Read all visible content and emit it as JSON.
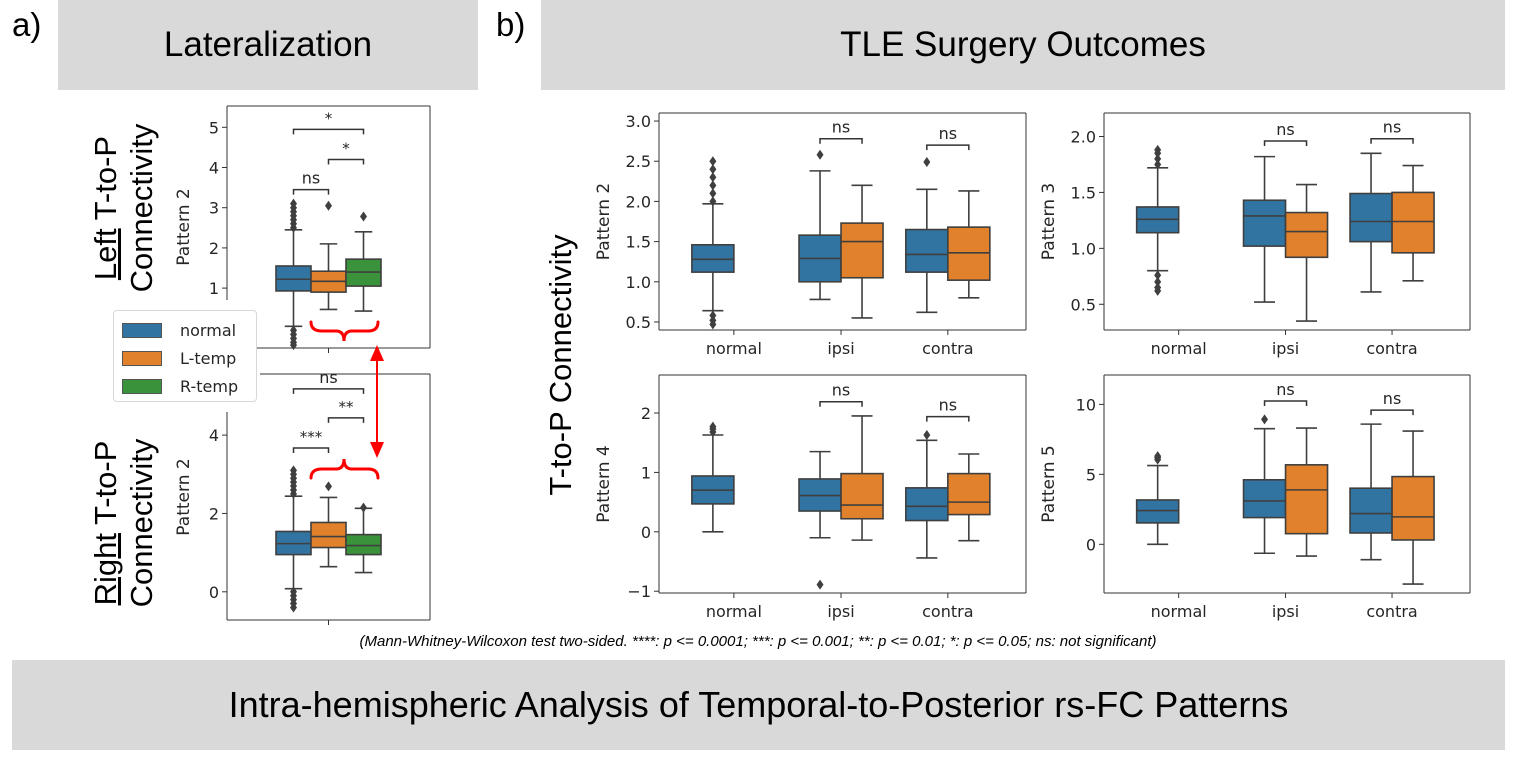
{
  "panel_a": {
    "letter": "a)",
    "title": "Lateralization",
    "row_labels": [
      {
        "underlined": "Left",
        "rest": " T-to-P",
        "line2": "Connectivity"
      },
      {
        "underlined": "Right",
        "rest": " T-to-P",
        "line2": "Connectivity"
      }
    ]
  },
  "panel_b": {
    "letter": "b)",
    "title": "TLE Surgery Outcomes",
    "row_label": "T-to-P Connectivity"
  },
  "footnote": "(Mann-Whitney-Wilcoxon test two-sided. ****: p <= 0.0001; ***: p <= 0.001; **: p <= 0.01; *: p <= 0.05; ns: not significant)",
  "bottom_title": "Intra-hemispheric Analysis of Temporal-to-Posterior rs-FC Patterns",
  "colors": {
    "normal": "#3274a1",
    "L-temp": "#e1812c",
    "R-temp": "#3a923a",
    "edge": "#3f3f3f",
    "annotation": "#ff0000",
    "header_bg": "#d9d9d9"
  },
  "legend": {
    "placement": "left",
    "items": [
      {
        "label": "normal",
        "color": "#3274a1"
      },
      {
        "label": "L-temp",
        "color": "#e1812c"
      },
      {
        "label": "R-temp",
        "color": "#3a923a"
      }
    ]
  },
  "chart_data": [
    {
      "id": "a_top",
      "type": "box",
      "ylabel": "Pattern 2",
      "ylim": [
        -0.49,
        5.53
      ],
      "yticks": [
        1,
        2,
        3,
        4,
        5
      ],
      "ytick_labels": [
        "1",
        "2",
        "3",
        "4",
        "5"
      ],
      "categories": [
        ""
      ],
      "boxes": [
        {
          "cat": 0,
          "hue": 0,
          "color": "#3274a1",
          "q1": 0.93,
          "median": 1.22,
          "q3": 1.55,
          "whislo": 0.05,
          "whishi": 2.45,
          "outliers": [
            2.5,
            2.6,
            2.7,
            2.8,
            2.9,
            3.0,
            3.1,
            -0.05,
            -0.15,
            -0.25,
            -0.35,
            -0.42
          ]
        },
        {
          "cat": 0,
          "hue": 1,
          "color": "#e1812c",
          "q1": 0.9,
          "median": 1.17,
          "q3": 1.42,
          "whislo": 0.47,
          "whishi": 2.1,
          "outliers": [
            3.05
          ]
        },
        {
          "cat": 0,
          "hue": 2,
          "color": "#3a923a",
          "q1": 1.05,
          "median": 1.4,
          "q3": 1.72,
          "whislo": 0.43,
          "whishi": 2.4,
          "outliers": [
            2.78
          ]
        }
      ],
      "brackets": [
        {
          "cat": 0,
          "h1": 0,
          "h2": 1,
          "y": 3.45,
          "label": "ns"
        },
        {
          "cat": 0,
          "h1": 1,
          "h2": 2,
          "y": 4.2,
          "label": "*"
        },
        {
          "cat": 0,
          "h1": 0,
          "h2": 2,
          "y": 4.95,
          "label": "*"
        }
      ]
    },
    {
      "id": "a_bottom",
      "type": "box",
      "ylabel": "Pattern 2",
      "ylim": [
        -0.72,
        5.56
      ],
      "yticks": [
        0,
        2,
        4
      ],
      "ytick_labels": [
        "0",
        "2",
        "4"
      ],
      "categories": [
        ""
      ],
      "boxes": [
        {
          "cat": 0,
          "hue": 0,
          "color": "#3274a1",
          "q1": 0.95,
          "median": 1.23,
          "q3": 1.54,
          "whislo": 0.08,
          "whishi": 2.44,
          "outliers": [
            2.5,
            2.6,
            2.7,
            2.8,
            2.9,
            3.0,
            3.1,
            0.0,
            -0.1,
            -0.2,
            -0.3,
            -0.4
          ]
        },
        {
          "cat": 0,
          "hue": 1,
          "color": "#e1812c",
          "q1": 1.13,
          "median": 1.41,
          "q3": 1.77,
          "whislo": 0.64,
          "whishi": 2.41,
          "outliers": [
            2.69
          ]
        },
        {
          "cat": 0,
          "hue": 2,
          "color": "#3a923a",
          "q1": 0.95,
          "median": 1.18,
          "q3": 1.46,
          "whislo": 0.49,
          "whishi": 2.13,
          "outliers": [
            2.15
          ]
        }
      ],
      "brackets": [
        {
          "cat": 0,
          "h1": 0,
          "h2": 1,
          "y": 3.67,
          "label": "***"
        },
        {
          "cat": 0,
          "h1": 1,
          "h2": 2,
          "y": 4.44,
          "label": "**"
        },
        {
          "cat": 0,
          "h1": 0,
          "h2": 2,
          "y": 5.18,
          "label": "ns"
        }
      ]
    },
    {
      "id": "b_p2",
      "type": "box",
      "ylabel": "Pattern 2",
      "ylim": [
        0.4,
        3.1
      ],
      "yticks": [
        0.5,
        1.0,
        1.5,
        2.0,
        2.5,
        3.0
      ],
      "ytick_labels": [
        "0.5",
        "1.0",
        "1.5",
        "2.0",
        "2.5",
        "3.0"
      ],
      "categories": [
        "normal",
        "ipsi",
        "contra"
      ],
      "boxes": [
        {
          "cat": 0,
          "hue": 0,
          "color": "#3274a1",
          "q1": 1.12,
          "median": 1.28,
          "q3": 1.46,
          "whislo": 0.64,
          "whishi": 1.97,
          "outliers": [
            2.0,
            2.1,
            2.2,
            2.3,
            2.4,
            2.5,
            0.58,
            0.52,
            0.47
          ]
        },
        {
          "cat": 1,
          "hue": 0,
          "color": "#3274a1",
          "q1": 1.0,
          "median": 1.29,
          "q3": 1.58,
          "whislo": 0.78,
          "whishi": 2.38,
          "outliers": [
            2.58
          ]
        },
        {
          "cat": 1,
          "hue": 1,
          "color": "#e1812c",
          "q1": 1.05,
          "median": 1.5,
          "q3": 1.73,
          "whislo": 0.55,
          "whishi": 2.2,
          "outliers": []
        },
        {
          "cat": 2,
          "hue": 0,
          "color": "#3274a1",
          "q1": 1.12,
          "median": 1.34,
          "q3": 1.65,
          "whislo": 0.62,
          "whishi": 2.15,
          "outliers": [
            2.49
          ]
        },
        {
          "cat": 2,
          "hue": 1,
          "color": "#e1812c",
          "q1": 1.02,
          "median": 1.36,
          "q3": 1.68,
          "whislo": 0.8,
          "whishi": 2.13,
          "outliers": []
        }
      ],
      "brackets": [
        {
          "cat": 1,
          "h1": 0,
          "h2": 1,
          "y": 2.78,
          "label": "ns"
        },
        {
          "cat": 2,
          "h1": 0,
          "h2": 1,
          "y": 2.7,
          "label": "ns"
        }
      ]
    },
    {
      "id": "b_p3",
      "type": "box",
      "ylabel": "Pattern 3",
      "ylim": [
        0.27,
        2.21
      ],
      "yticks": [
        0.5,
        1.0,
        1.5,
        2.0
      ],
      "ytick_labels": [
        "0.5",
        "1.0",
        "1.5",
        "2.0"
      ],
      "categories": [
        "normal",
        "ipsi",
        "contra"
      ],
      "boxes": [
        {
          "cat": 0,
          "hue": 0,
          "color": "#3274a1",
          "q1": 1.14,
          "median": 1.26,
          "q3": 1.37,
          "whislo": 0.8,
          "whishi": 1.72,
          "outliers": [
            1.75,
            1.8,
            1.85,
            1.88,
            0.76,
            0.7,
            0.65,
            0.62
          ]
        },
        {
          "cat": 1,
          "hue": 0,
          "color": "#3274a1",
          "q1": 1.02,
          "median": 1.29,
          "q3": 1.43,
          "whislo": 0.52,
          "whishi": 1.82,
          "outliers": []
        },
        {
          "cat": 1,
          "hue": 1,
          "color": "#e1812c",
          "q1": 0.92,
          "median": 1.15,
          "q3": 1.32,
          "whislo": 0.35,
          "whishi": 1.57,
          "outliers": []
        },
        {
          "cat": 2,
          "hue": 0,
          "color": "#3274a1",
          "q1": 1.06,
          "median": 1.24,
          "q3": 1.49,
          "whislo": 0.61,
          "whishi": 1.85,
          "outliers": []
        },
        {
          "cat": 2,
          "hue": 1,
          "color": "#e1812c",
          "q1": 0.96,
          "median": 1.24,
          "q3": 1.5,
          "whislo": 0.71,
          "whishi": 1.74,
          "outliers": []
        }
      ],
      "brackets": [
        {
          "cat": 1,
          "h1": 0,
          "h2": 1,
          "y": 1.96,
          "label": "ns"
        },
        {
          "cat": 2,
          "h1": 0,
          "h2": 1,
          "y": 1.98,
          "label": "ns"
        }
      ]
    },
    {
      "id": "b_p4",
      "type": "box",
      "ylabel": "Pattern 4",
      "ylim": [
        -1.03,
        2.64
      ],
      "yticks": [
        -1,
        0,
        1,
        2
      ],
      "ytick_labels": [
        "−1",
        "0",
        "1",
        "2"
      ],
      "categories": [
        "normal",
        "ipsi",
        "contra"
      ],
      "boxes": [
        {
          "cat": 0,
          "hue": 0,
          "color": "#3274a1",
          "q1": 0.47,
          "median": 0.7,
          "q3": 0.94,
          "whislo": 0.0,
          "whishi": 1.63,
          "outliers": [
            1.68,
            1.73,
            1.77
          ]
        },
        {
          "cat": 1,
          "hue": 0,
          "color": "#3274a1",
          "q1": 0.35,
          "median": 0.61,
          "q3": 0.89,
          "whislo": -0.1,
          "whishi": 1.35,
          "outliers": [
            -0.89
          ]
        },
        {
          "cat": 1,
          "hue": 1,
          "color": "#e1812c",
          "q1": 0.22,
          "median": 0.45,
          "q3": 0.98,
          "whislo": -0.14,
          "whishi": 1.95,
          "outliers": []
        },
        {
          "cat": 2,
          "hue": 0,
          "color": "#3274a1",
          "q1": 0.19,
          "median": 0.43,
          "q3": 0.74,
          "whislo": -0.44,
          "whishi": 1.54,
          "outliers": [
            1.63
          ]
        },
        {
          "cat": 2,
          "hue": 1,
          "color": "#e1812c",
          "q1": 0.29,
          "median": 0.5,
          "q3": 0.98,
          "whislo": -0.15,
          "whishi": 1.31,
          "outliers": []
        }
      ],
      "brackets": [
        {
          "cat": 1,
          "h1": 0,
          "h2": 1,
          "y": 2.19,
          "label": "ns"
        },
        {
          "cat": 2,
          "h1": 0,
          "h2": 1,
          "y": 1.94,
          "label": "ns"
        }
      ]
    },
    {
      "id": "b_p5",
      "type": "box",
      "ylabel": "Pattern 5",
      "ylim": [
        -3.48,
        12.1
      ],
      "yticks": [
        0,
        5,
        10
      ],
      "ytick_labels": [
        "0",
        "5",
        "10"
      ],
      "categories": [
        "normal",
        "ipsi",
        "contra"
      ],
      "boxes": [
        {
          "cat": 0,
          "hue": 0,
          "color": "#3274a1",
          "q1": 1.53,
          "median": 2.41,
          "q3": 3.17,
          "whislo": 0.0,
          "whishi": 5.63,
          "outliers": [
            6.05,
            6.2,
            6.3
          ]
        },
        {
          "cat": 1,
          "hue": 0,
          "color": "#3274a1",
          "q1": 1.91,
          "median": 3.1,
          "q3": 4.61,
          "whislo": -0.64,
          "whishi": 8.26,
          "outliers": [
            8.93
          ]
        },
        {
          "cat": 1,
          "hue": 1,
          "color": "#e1812c",
          "q1": 0.76,
          "median": 3.89,
          "q3": 5.68,
          "whislo": -0.84,
          "whishi": 8.31,
          "outliers": []
        },
        {
          "cat": 2,
          "hue": 0,
          "color": "#3274a1",
          "q1": 0.81,
          "median": 2.2,
          "q3": 4.01,
          "whislo": -1.1,
          "whishi": 8.59,
          "outliers": []
        },
        {
          "cat": 2,
          "hue": 1,
          "color": "#e1812c",
          "q1": 0.31,
          "median": 1.96,
          "q3": 4.84,
          "whislo": -2.84,
          "whishi": 8.09,
          "outliers": []
        }
      ],
      "brackets": [
        {
          "cat": 1,
          "h1": 0,
          "h2": 1,
          "y": 10.24,
          "label": "ns"
        },
        {
          "cat": 2,
          "h1": 0,
          "h2": 1,
          "y": 9.59,
          "label": "ns"
        }
      ]
    }
  ]
}
